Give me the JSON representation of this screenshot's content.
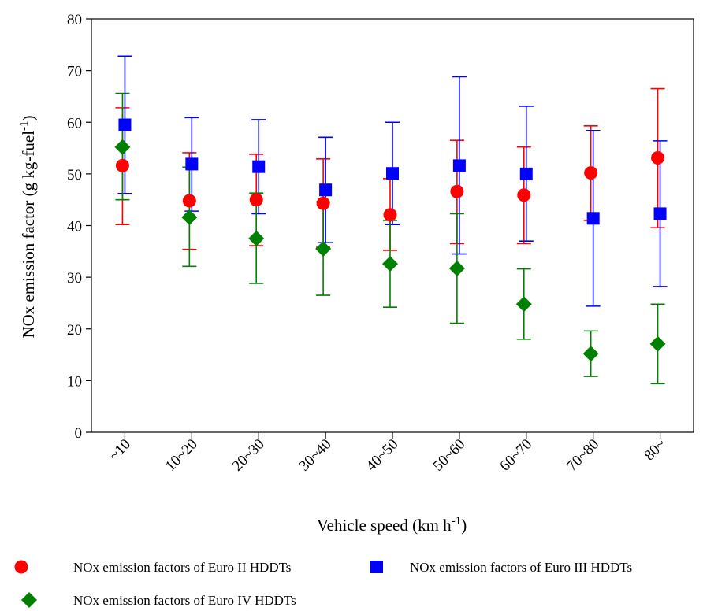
{
  "chart_data": {
    "type": "scatter",
    "xlabel": "Vehicle speed (km h",
    "xlabel_sup": "-1",
    "xlabel_suffix": ")",
    "ylabel": "NOx emission factor (g kg-fuel",
    "ylabel_sup": "-1",
    "ylabel_suffix": ")",
    "categories": [
      "~10",
      "10~20",
      "20~30",
      "30~40",
      "40~50",
      "50~60",
      "60~70",
      "70~80",
      "80~"
    ],
    "ylim": [
      0,
      80
    ],
    "yticks": [
      0,
      10,
      20,
      30,
      40,
      50,
      60,
      70,
      80
    ],
    "grid": false,
    "legend_position": "bottom",
    "series": [
      {
        "name": "NOx emission factors of Euro II HDDTs",
        "color": "#ff0000",
        "marker": "circle",
        "values": [
          51.6,
          44.8,
          45.0,
          44.3,
          42.1,
          46.6,
          45.9,
          50.2,
          53.1
        ],
        "error_low": [
          40.2,
          35.4,
          36.1,
          35.8,
          35.2,
          36.5,
          36.5,
          41.0,
          39.6
        ],
        "error_high": [
          62.8,
          54.1,
          53.8,
          52.9,
          49.1,
          56.5,
          55.2,
          59.3,
          66.5
        ]
      },
      {
        "name": "NOx emission factors of Euro III HDDTs",
        "color": "#0000ff",
        "marker": "square",
        "values": [
          59.5,
          51.9,
          51.4,
          46.9,
          50.1,
          51.6,
          50.0,
          41.4,
          42.3
        ],
        "error_low": [
          46.2,
          42.8,
          42.3,
          36.7,
          40.2,
          34.5,
          37.0,
          24.4,
          28.2
        ],
        "error_high": [
          72.8,
          60.9,
          60.5,
          57.1,
          60.0,
          68.8,
          63.1,
          58.4,
          56.4
        ]
      },
      {
        "name": "NOx emission factors of Euro IV HDDTs",
        "color": "#008000",
        "marker": "diamond",
        "values": [
          55.2,
          41.6,
          37.5,
          35.5,
          32.6,
          31.7,
          24.8,
          15.2,
          17.1
        ],
        "error_low": [
          45.0,
          32.1,
          28.8,
          26.5,
          24.2,
          21.1,
          18.0,
          10.8,
          9.4
        ],
        "error_high": [
          65.6,
          51.3,
          46.3,
          44.6,
          41.0,
          42.3,
          31.6,
          19.6,
          24.8
        ]
      }
    ]
  }
}
